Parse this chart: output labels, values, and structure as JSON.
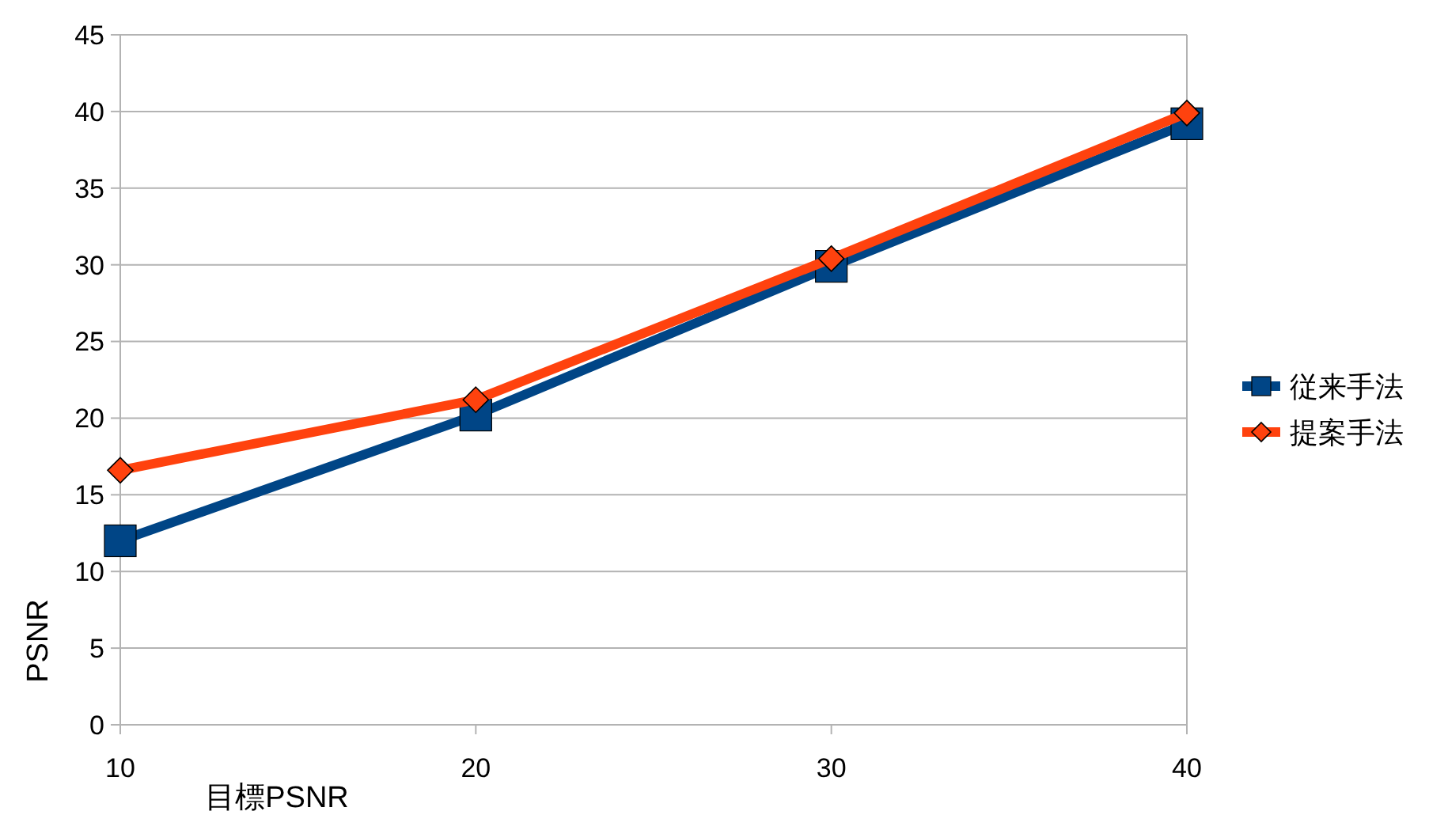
{
  "chart_data": {
    "type": "line",
    "xlabel": "目標PSNR",
    "ylabel": "PSNR",
    "x": [
      10,
      20,
      30,
      40
    ],
    "xlim": [
      10,
      40
    ],
    "xticks": [
      10,
      20,
      30,
      40
    ],
    "ylim": [
      0,
      45
    ],
    "yticks": [
      0,
      5,
      10,
      15,
      20,
      25,
      30,
      35,
      40,
      45
    ],
    "grid": "y",
    "legend": "right",
    "series": [
      {
        "name": "従来手法",
        "color": "#004586",
        "marker": "square",
        "values": [
          12.0,
          20.2,
          29.9,
          39.2
        ]
      },
      {
        "name": "提案手法",
        "color": "#ff420e",
        "marker": "diamond",
        "values": [
          16.6,
          21.2,
          30.4,
          39.9
        ]
      }
    ]
  }
}
